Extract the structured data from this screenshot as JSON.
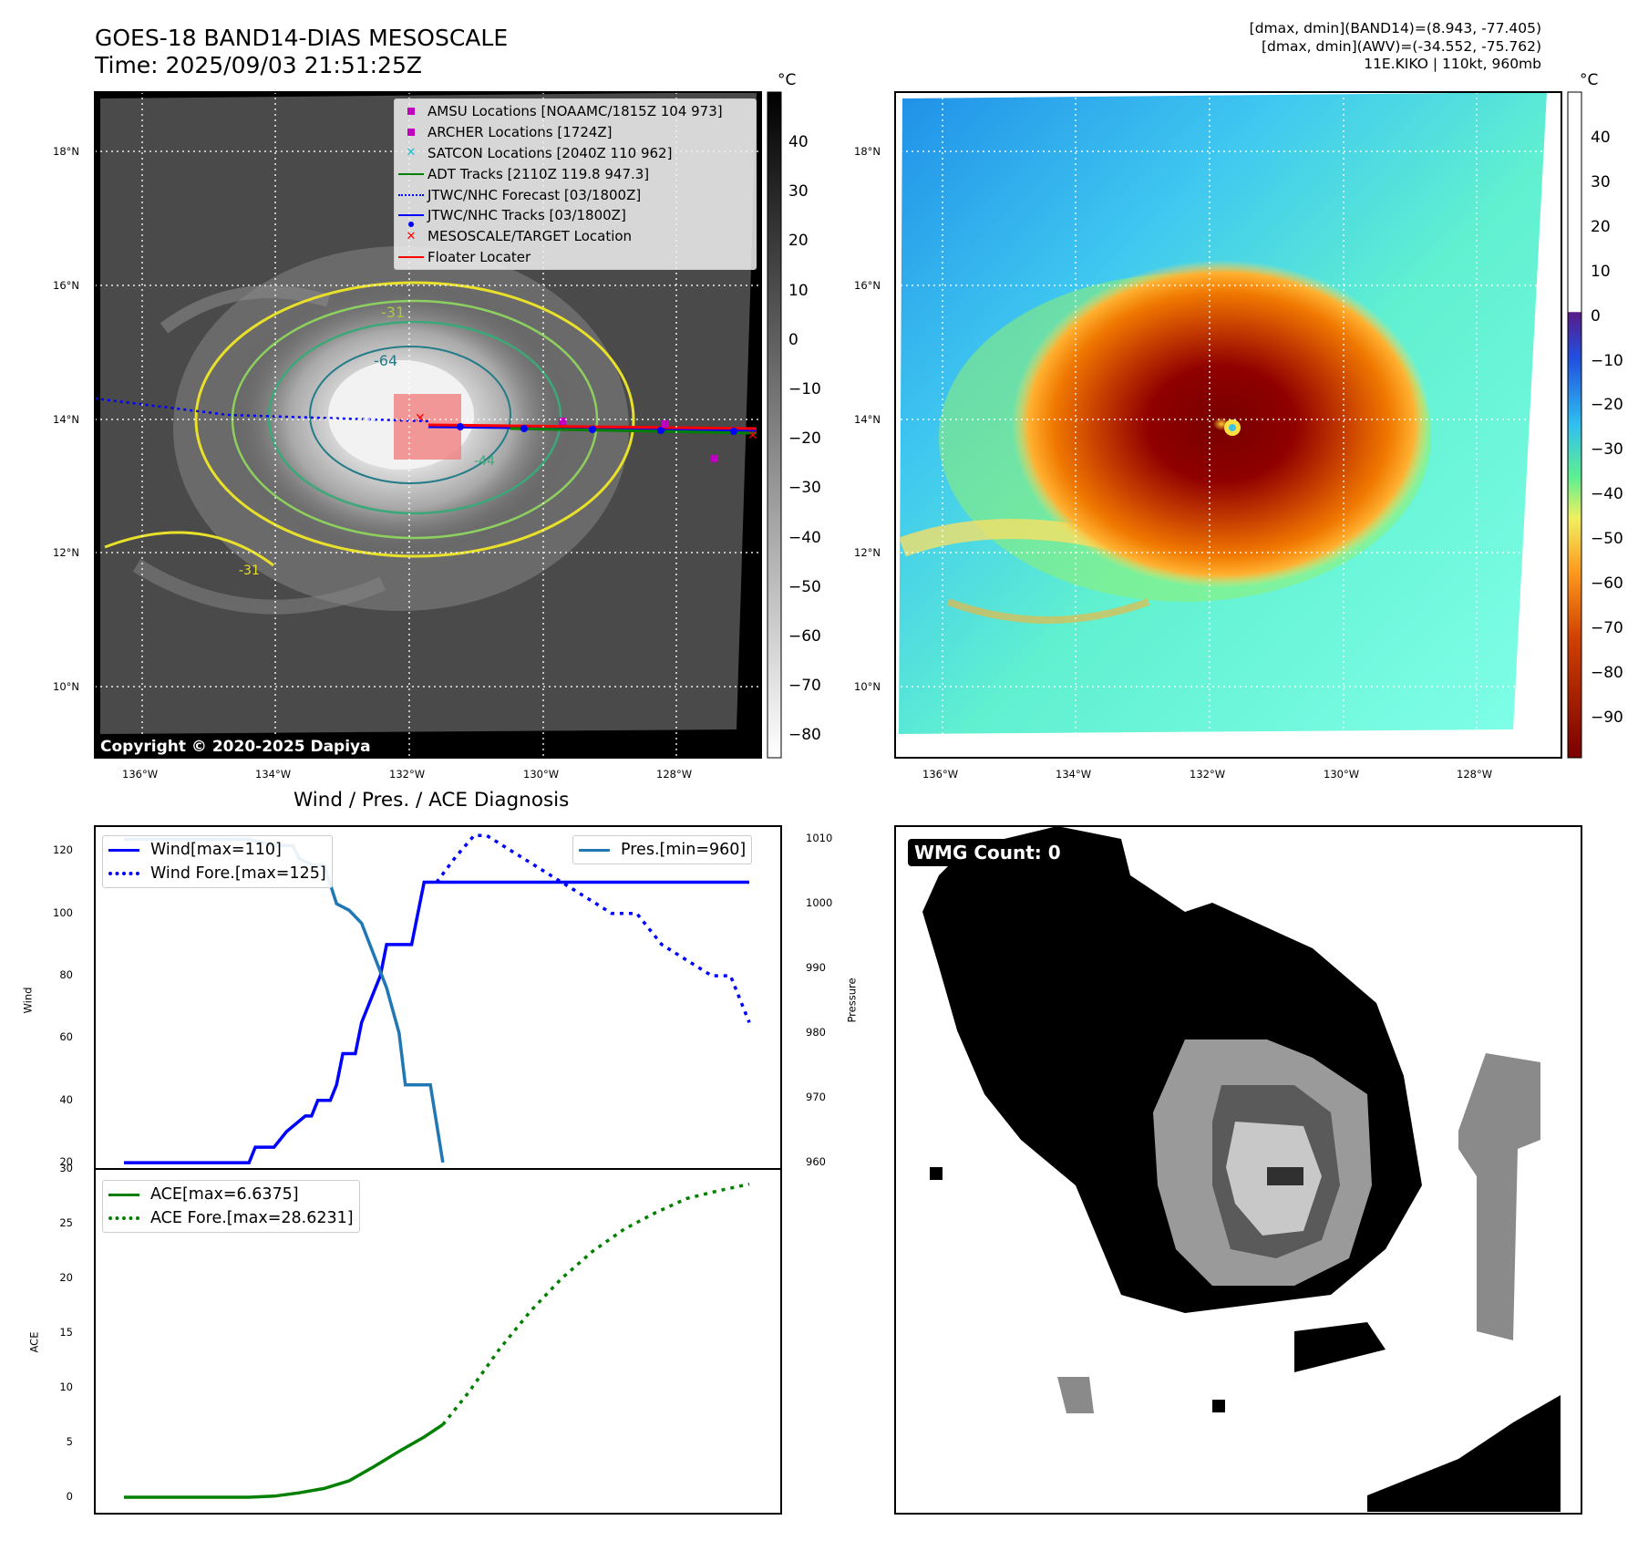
{
  "header": {
    "title_line1": "GOES-18 BAND14-DIAS MESOSCALE",
    "title_line2": "Time: 2025/09/03 21:51:25Z",
    "right_line1": "[dmax, dmin](BAND14)=(8.943, -77.405)",
    "right_line2": "[dmax, dmin](AWV)=(-34.552, -75.762)",
    "right_line3": "11E.KIKO | 110kt, 960mb"
  },
  "maps": {
    "lat_ticks": [
      "18°N",
      "16°N",
      "14°N",
      "12°N",
      "10°N"
    ],
    "lon_ticks": [
      "136°W",
      "134°W",
      "132°W",
      "130°W",
      "128°W"
    ],
    "copyright": "Copyright © 2020-2025 Dapiya",
    "contour_labels": [
      "-31",
      "-64",
      "-31",
      "-44"
    ]
  },
  "colorbar_ir": {
    "unit": "°C",
    "ticks": [
      "40",
      "30",
      "20",
      "10",
      "0",
      "−10",
      "−20",
      "−30",
      "−40",
      "−50",
      "−60",
      "−70",
      "−80"
    ]
  },
  "colorbar_awv": {
    "unit": "°C",
    "ticks": [
      "40",
      "30",
      "20",
      "10",
      "0",
      "−10",
      "−20",
      "−30",
      "−40",
      "−50",
      "−60",
      "−70",
      "−80",
      "−90"
    ]
  },
  "map_legend": [
    {
      "label": "AMSU Locations [NOAAMC/1815Z 104 973]",
      "symbol": "square",
      "color": "#bf00bf"
    },
    {
      "label": "ARCHER Locations [1724Z]",
      "symbol": "square",
      "color": "#bf00bf"
    },
    {
      "label": "SATCON Locations [2040Z 110 962]",
      "symbol": "x",
      "color": "#17becf"
    },
    {
      "label": "ADT Tracks [2110Z 119.8 947.3]",
      "symbol": "line",
      "color": "#008000"
    },
    {
      "label": "JTWC/NHC Forecast [03/1800Z]",
      "symbol": "dotted",
      "color": "#0000ff"
    },
    {
      "label": "JTWC/NHC Tracks [03/1800Z]",
      "symbol": "line-dot",
      "color": "#0000ff"
    },
    {
      "label": "MESOSCALE/TARGET Location",
      "symbol": "x",
      "color": "#ff0000"
    },
    {
      "label": "Floater Locater",
      "symbol": "line",
      "color": "#ff0000"
    }
  ],
  "wind_panel": {
    "title": "Wind / Pres. / ACE Diagnosis",
    "wind_ylabel": "Wind",
    "pres_ylabel": "Pressure",
    "ace_ylabel": "ACE",
    "legend_wind": "Wind[max=110]",
    "legend_wind_fore": "Wind Fore.[max=125]",
    "legend_pres": "Pres.[min=960]",
    "legend_ace": "ACE[max=6.6375]",
    "legend_ace_fore": "ACE Fore.[max=28.6231]",
    "wind_ticks": [
      "120",
      "100",
      "80",
      "60",
      "40",
      "20"
    ],
    "pres_ticks": [
      "1010",
      "1000",
      "990",
      "980",
      "970",
      "960"
    ],
    "ace_ticks": [
      "30",
      "25",
      "20",
      "15",
      "10",
      "5",
      "0"
    ]
  },
  "wmg": {
    "label": "WMG Count: 0"
  },
  "chart_data": [
    {
      "type": "line",
      "title": "Wind / Pres. / ACE Diagnosis",
      "ylabel": "Wind",
      "ylim": [
        18,
        128
      ],
      "x": [
        0,
        1,
        2,
        3,
        4,
        5,
        6,
        7,
        8,
        9,
        10,
        11,
        12,
        13,
        14,
        15,
        16,
        17,
        18,
        19,
        20,
        21,
        22,
        23,
        24,
        25,
        26,
        27,
        28,
        29,
        30,
        31,
        32,
        33,
        34,
        35,
        36,
        37,
        38,
        39,
        40,
        41,
        42,
        43,
        44,
        45,
        46,
        47,
        48,
        49,
        50,
        51,
        52,
        53,
        54,
        55,
        56,
        57,
        58,
        59,
        60,
        61,
        62,
        63,
        64,
        65,
        66,
        67,
        68,
        69,
        70,
        71,
        72,
        73,
        74,
        75,
        76,
        77,
        78,
        79,
        80,
        81,
        82,
        83,
        84,
        85,
        86,
        87,
        88,
        89,
        90,
        91,
        92,
        93,
        94,
        95,
        96,
        97,
        98,
        99,
        100
      ],
      "series": [
        {
          "name": "Wind[max=110]",
          "style": "solid",
          "color": "#0000ff",
          "x": [
            0,
            20,
            21,
            24,
            26,
            29,
            30,
            31,
            33,
            34,
            35,
            37,
            38,
            40,
            41,
            42,
            44,
            46,
            48,
            50,
            51,
            52,
            53,
            54,
            55,
            57,
            58,
            59,
            60,
            61,
            62,
            63,
            64,
            65,
            66,
            67,
            68,
            69,
            70,
            71,
            72,
            73,
            74,
            75,
            76,
            77,
            78,
            79,
            80,
            81,
            82,
            83,
            84,
            85,
            86,
            87,
            88,
            89,
            90,
            91,
            92,
            93,
            94,
            95,
            96,
            97,
            98,
            99,
            100
          ],
          "y": [
            20,
            20,
            25,
            25,
            30,
            35,
            35,
            40,
            40,
            45,
            55,
            55,
            65,
            75,
            80,
            90,
            90,
            90,
            110,
            110,
            110,
            110,
            110,
            110,
            110,
            110,
            110,
            110,
            110,
            110,
            110,
            110,
            110,
            110,
            110,
            110,
            110,
            110,
            110,
            110,
            110,
            110,
            110,
            110,
            110,
            110,
            110,
            110,
            110,
            110,
            110,
            110,
            110,
            110,
            110,
            110,
            110,
            110,
            110,
            110,
            110,
            110,
            110,
            110,
            110,
            110,
            110,
            110,
            110
          ]
        },
        {
          "name": "Wind Fore.[max=125]",
          "style": "dotted",
          "color": "#0000ff",
          "x": [
            50,
            53,
            56,
            58,
            62,
            66,
            70,
            74,
            78,
            82,
            86,
            90,
            94,
            97,
            100
          ],
          "y": [
            110,
            118,
            125,
            125,
            120,
            115,
            110,
            105,
            100,
            100,
            90,
            85,
            80,
            80,
            65
          ]
        },
        {
          "name": "Pres.[min=960]",
          "style": "solid",
          "color": "#1f77b4",
          "axis": "right",
          "ylim": [
            959,
            1012
          ],
          "x": [
            0,
            16,
            20,
            24,
            27,
            28,
            30,
            32,
            34,
            36,
            38,
            40,
            42,
            44,
            45,
            47,
            49,
            51
          ],
          "y": [
            1010,
            1010,
            1010,
            1009,
            1009,
            1007,
            1006,
            1006,
            1000,
            999,
            997,
            992,
            987,
            980,
            972,
            972,
            972,
            960
          ]
        }
      ]
    },
    {
      "type": "line",
      "ylabel": "ACE",
      "ylim": [
        -1.5,
        30
      ],
      "series": [
        {
          "name": "ACE[max=6.6375]",
          "style": "solid",
          "color": "#008000",
          "x": [
            0,
            10,
            20,
            24,
            28,
            32,
            36,
            40,
            44,
            48,
            51
          ],
          "y": [
            0,
            0,
            0,
            0.1,
            0.4,
            0.8,
            1.5,
            2.8,
            4.2,
            5.5,
            6.6375
          ]
        },
        {
          "name": "ACE Fore.[max=28.6231]",
          "style": "dotted",
          "color": "#008000",
          "x": [
            51,
            55,
            60,
            65,
            70,
            75,
            80,
            85,
            90,
            95,
            100
          ],
          "y": [
            6.6375,
            9.5,
            13.5,
            17.0,
            20.0,
            22.5,
            24.5,
            26.0,
            27.3,
            28.0,
            28.6231
          ]
        }
      ]
    }
  ]
}
